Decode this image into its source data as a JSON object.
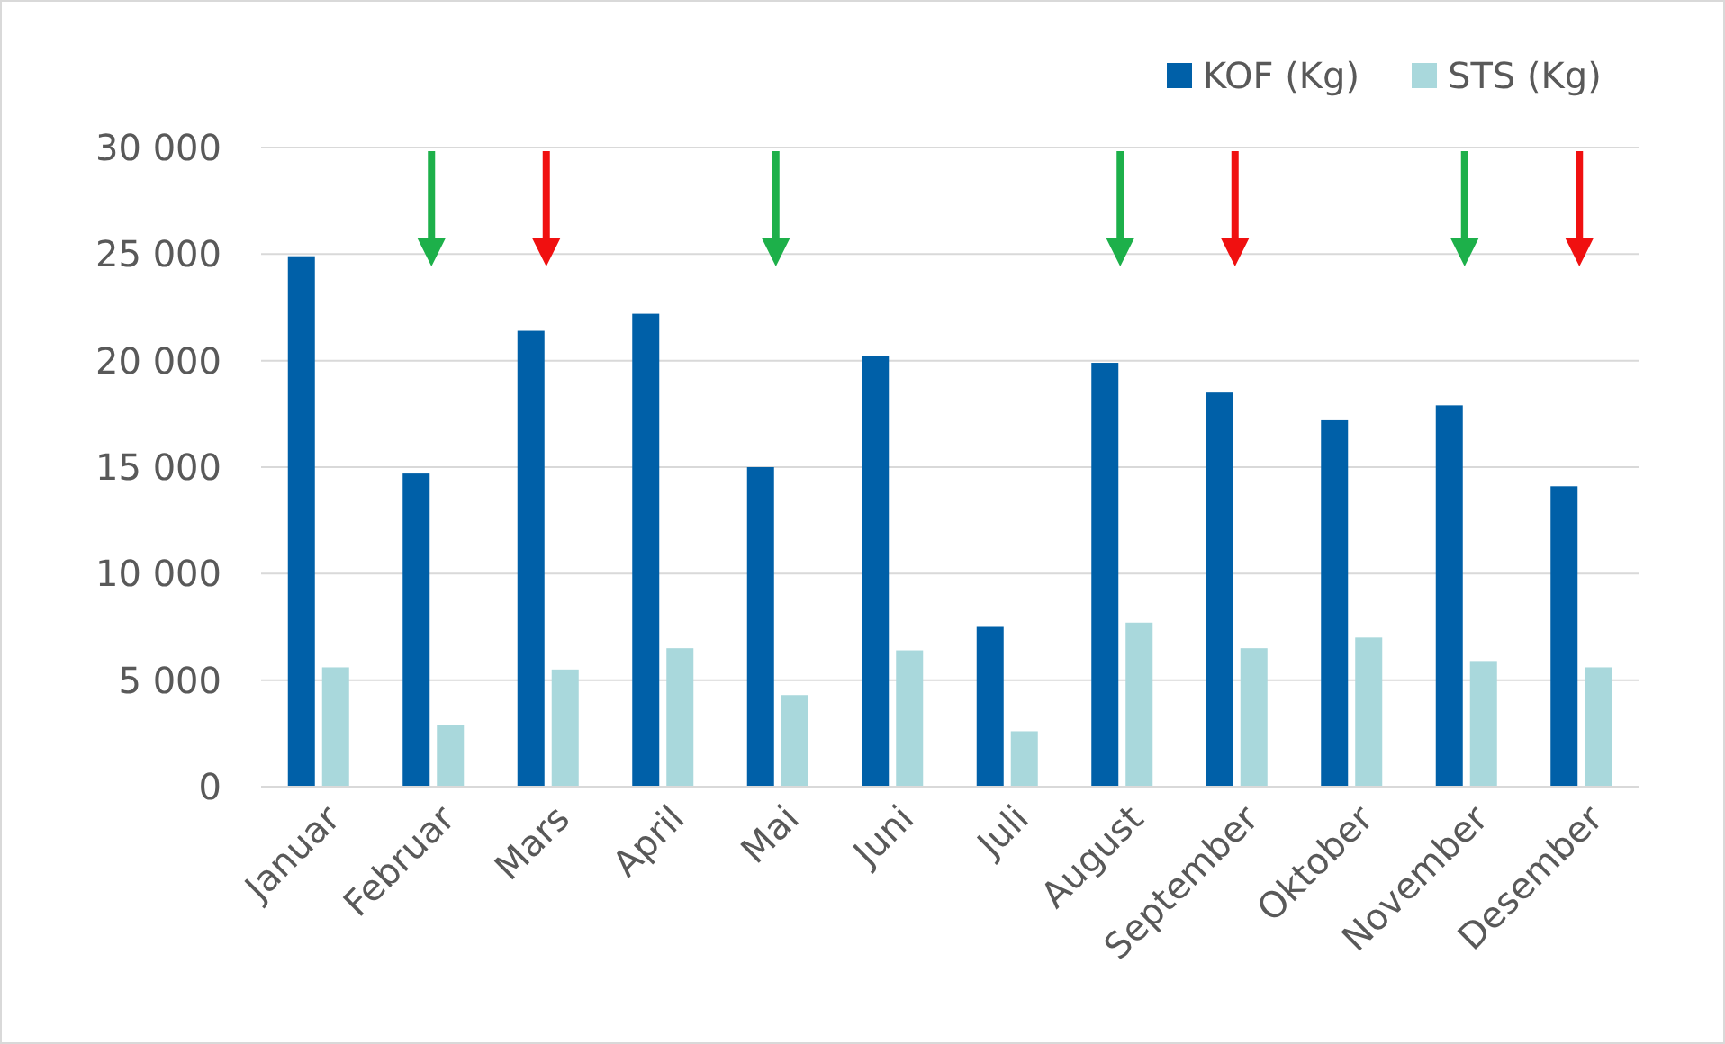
{
  "chart_data": {
    "type": "bar",
    "categories": [
      "Januar",
      "Februar",
      "Mars",
      "April",
      "Mai",
      "Juni",
      "Juli",
      "August",
      "September",
      "Oktober",
      "November",
      "Desember"
    ],
    "series": [
      {
        "name": "KOF (Kg)",
        "color": "#0060a8",
        "values": [
          24900,
          14700,
          21400,
          22200,
          15000,
          20200,
          7500,
          19900,
          18500,
          17200,
          17900,
          14100
        ]
      },
      {
        "name": "STS (Kg)",
        "color": "#a9d8dc",
        "values": [
          5600,
          2900,
          5500,
          6500,
          4300,
          6400,
          2600,
          7700,
          6500,
          7000,
          5900,
          5600
        ]
      }
    ],
    "ylim": [
      0,
      30000
    ],
    "yticks": [
      {
        "value": 0,
        "label": "0"
      },
      {
        "value": 5000,
        "label": "5 000"
      },
      {
        "value": 10000,
        "label": "10 000"
      },
      {
        "value": 15000,
        "label": "15 000"
      },
      {
        "value": 20000,
        "label": "20 000"
      },
      {
        "value": 25000,
        "label": "25 000"
      },
      {
        "value": 30000,
        "label": "30 000"
      }
    ],
    "grid": "y",
    "legend": "top right"
  }
}
